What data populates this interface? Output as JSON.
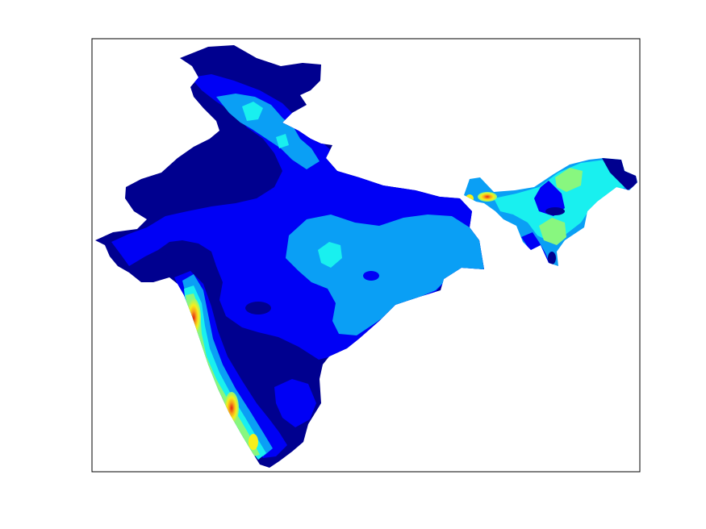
{
  "chart_data": {
    "type": "heatmap",
    "title": "",
    "xlabel": "",
    "ylabel": "",
    "colormap": "jet",
    "levels": [
      {
        "level": 0,
        "color": "#00008f"
      },
      {
        "level": 1,
        "color": "#0000f5"
      },
      {
        "level": 2,
        "color": "#0a9ff5"
      },
      {
        "level": 3,
        "color": "#19f0ef"
      },
      {
        "level": 4,
        "color": "#88f77f"
      },
      {
        "level": 5,
        "color": "#f6ef1a"
      },
      {
        "level": 6,
        "color": "#f7a21a"
      },
      {
        "level": 7,
        "color": "#e42410"
      }
    ],
    "grid": false,
    "legend": "none"
  },
  "frame": {
    "stroke": "#000000"
  }
}
